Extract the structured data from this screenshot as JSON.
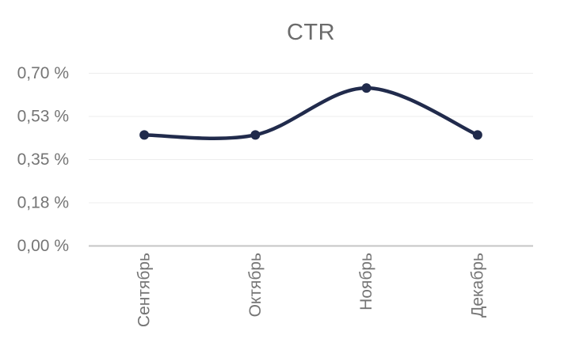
{
  "chart_data": {
    "type": "line",
    "title": "CTR",
    "categories": [
      "Сентябрь",
      "Октябрь",
      "Ноябрь",
      "Декабрь"
    ],
    "series": [
      {
        "name": "CTR",
        "values": [
          0.45,
          0.45,
          0.64,
          0.45
        ]
      }
    ],
    "xlabel": "",
    "ylabel": "",
    "ylim": [
      0,
      0.7
    ],
    "y_ticks": [
      {
        "value": 0,
        "label": "0,00 %"
      },
      {
        "value": 0.175,
        "label": "0,18 %"
      },
      {
        "value": 0.35,
        "label": "0,35 %"
      },
      {
        "value": 0.525,
        "label": "0,53 %"
      },
      {
        "value": 0.7,
        "label": "0,70 %"
      }
    ],
    "grid": true,
    "legend_position": "none",
    "smooth": true,
    "marker": "circle",
    "colors": {
      "line": "#212b4c",
      "marker": "#212b4c",
      "grid": "#ededed",
      "axis": "#c6c6c6",
      "tick_label": "#757575",
      "title": "#6b6b6b"
    }
  }
}
